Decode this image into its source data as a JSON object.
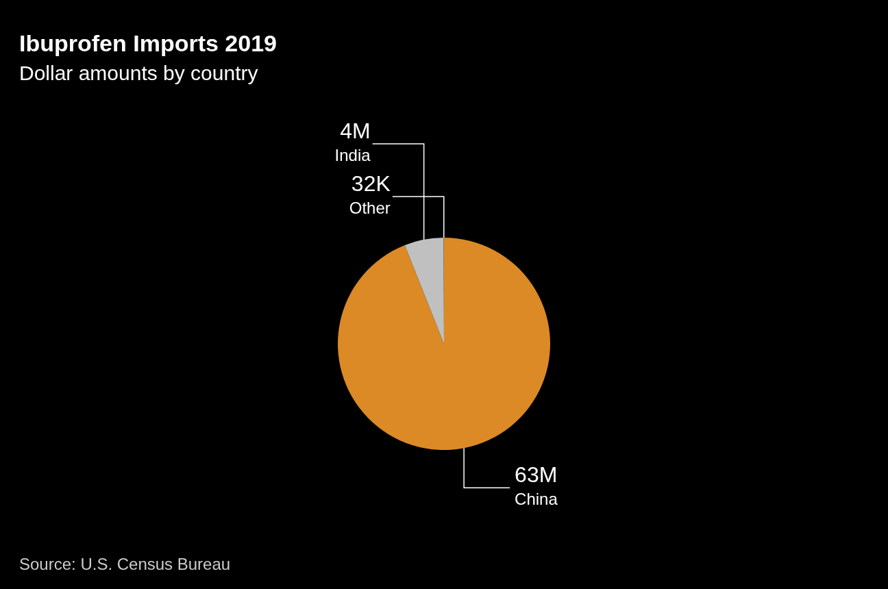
{
  "chart_data": {
    "type": "pie",
    "title": "Ibuprofen Imports 2019",
    "subtitle": "Dollar amounts by country",
    "categories": [
      "China",
      "India",
      "Other"
    ],
    "values": [
      63000000,
      4000000,
      32000
    ],
    "value_labels": [
      "63M",
      "4M",
      "32K"
    ],
    "colors": [
      "#dc8a25",
      "#c0c0c0",
      "#8c8c8c"
    ],
    "annotations": [
      "Source: U.S. Census Bureau"
    ]
  }
}
